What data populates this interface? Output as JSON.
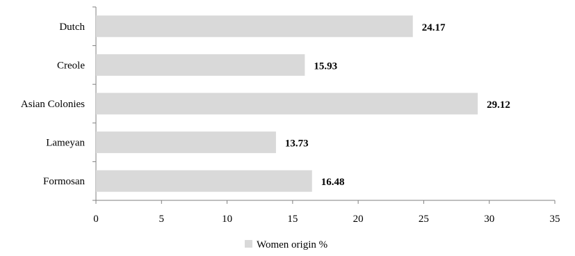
{
  "chart_data": {
    "type": "bar",
    "orientation": "horizontal",
    "categories": [
      "Dutch",
      "Creole",
      "Asian Colonies",
      "Lameyan",
      "Formosan"
    ],
    "series": [
      {
        "name": "Women origin %",
        "values": [
          24.17,
          15.93,
          29.12,
          13.73,
          16.48
        ],
        "color": "#d9d9d9"
      }
    ],
    "value_labels": [
      "24.17",
      "15.93",
      "29.12",
      "13.73",
      "16.48"
    ],
    "xlim": [
      0,
      35
    ],
    "xticks": [
      0,
      5,
      10,
      15,
      20,
      25,
      30,
      35
    ],
    "xtick_labels": [
      "0",
      "5",
      "10",
      "15",
      "20",
      "25",
      "30",
      "35"
    ],
    "grid": false,
    "legend": "bottom-center"
  }
}
